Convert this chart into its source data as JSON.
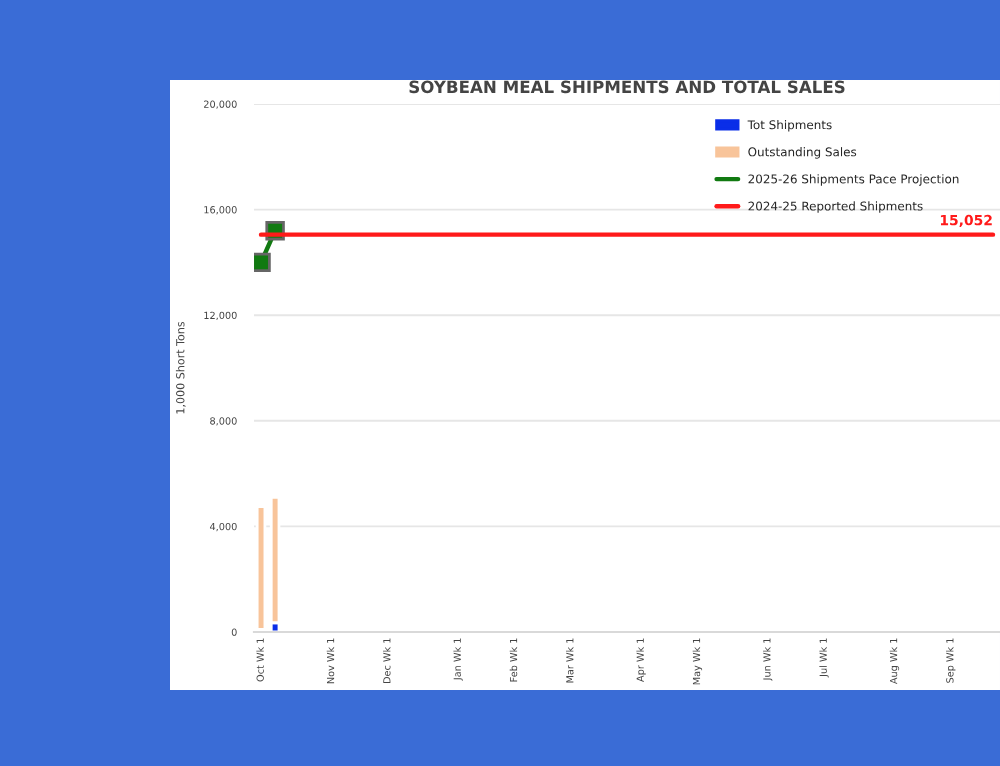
{
  "chart_data": {
    "type": "bar",
    "title": "SOYBEAN MEAL SHIPMENTS AND TOTAL SALES",
    "ylabel": "1,000 Short Tons",
    "categories": [
      "Oct Wk 1",
      null,
      null,
      null,
      null,
      "Nov Wk 1",
      null,
      null,
      null,
      "Dec Wk 1",
      null,
      null,
      null,
      null,
      "Jan Wk 1",
      null,
      null,
      null,
      "Feb Wk 1",
      null,
      null,
      null,
      "Mar Wk 1",
      null,
      null,
      null,
      null,
      "Apr Wk 1",
      null,
      null,
      null,
      "May Wk 1",
      null,
      null,
      null,
      null,
      "Jun Wk 1",
      null,
      null,
      null,
      "Jul Wk 1",
      null,
      null,
      null,
      null,
      "Aug Wk 1",
      null,
      null,
      null,
      "Sep Wk 1",
      null,
      null,
      null
    ],
    "stacked": true,
    "series": [
      {
        "name": "Tot Shipments",
        "color": "#0a2ee8",
        "values": [
          100,
          350,
          null,
          null,
          null,
          null,
          null,
          null,
          null,
          null,
          null,
          null,
          null,
          null,
          null,
          null,
          null,
          null,
          null,
          null,
          null,
          null,
          null,
          null,
          null,
          null,
          null,
          null,
          null,
          null,
          null,
          null,
          null,
          null,
          null,
          null,
          null,
          null,
          null,
          null,
          null,
          null,
          null,
          null,
          null,
          null,
          null,
          null,
          null,
          null,
          null,
          null,
          null
        ]
      },
      {
        "name": "Outstanding Sales",
        "color": "#f8c49a",
        "values": [
          4650,
          4750,
          null,
          null,
          null,
          null,
          null,
          null,
          null,
          null,
          null,
          null,
          null,
          null,
          null,
          null,
          null,
          null,
          null,
          null,
          null,
          null,
          null,
          null,
          null,
          null,
          null,
          null,
          null,
          null,
          null,
          null,
          null,
          null,
          null,
          null,
          null,
          null,
          null,
          null,
          null,
          null,
          null,
          null,
          null,
          null,
          null,
          null,
          null,
          null,
          null,
          null,
          null
        ]
      },
      {
        "name": "2025-26 Shipments Pace Projection",
        "type": "line",
        "color": "#117a11",
        "marker": "square",
        "values": [
          14000,
          15200,
          null,
          null,
          null,
          null,
          null,
          null,
          null,
          null,
          null,
          null,
          null,
          null,
          null,
          null,
          null,
          null,
          null,
          null,
          null,
          null,
          null,
          null,
          null,
          null,
          null,
          null,
          null,
          null,
          null,
          null,
          null,
          null,
          null,
          null,
          null,
          null,
          null,
          null,
          null,
          null,
          null,
          null,
          null,
          null,
          null,
          null,
          null,
          null,
          null,
          null,
          null
        ]
      },
      {
        "name": "2024-25 Reported Shipments",
        "type": "line",
        "color": "#ff1a1a",
        "values": [
          15052,
          15052,
          15052,
          15052,
          15052,
          15052,
          15052,
          15052,
          15052,
          15052,
          15052,
          15052,
          15052,
          15052,
          15052,
          15052,
          15052,
          15052,
          15052,
          15052,
          15052,
          15052,
          15052,
          15052,
          15052,
          15052,
          15052,
          15052,
          15052,
          15052,
          15052,
          15052,
          15052,
          15052,
          15052,
          15052,
          15052,
          15052,
          15052,
          15052,
          15052,
          15052,
          15052,
          15052,
          15052,
          15052,
          15052,
          15052,
          15052,
          15052,
          15052,
          15052,
          15052
        ],
        "value_labels": [
          null,
          null,
          null,
          null,
          null,
          null,
          null,
          null,
          null,
          null,
          null,
          null,
          null,
          null,
          null,
          null,
          null,
          null,
          null,
          null,
          null,
          null,
          null,
          null,
          null,
          null,
          null,
          null,
          null,
          null,
          null,
          null,
          null,
          null,
          null,
          null,
          null,
          null,
          null,
          null,
          null,
          null,
          null,
          null,
          null,
          null,
          null,
          null,
          null,
          null,
          null,
          null,
          "15,052"
        ]
      }
    ],
    "ylim": [
      0,
      20000
    ],
    "yticks": [
      {
        "value": 0,
        "label": "0"
      },
      {
        "value": 4000,
        "label": "4,000"
      },
      {
        "value": 8000,
        "label": "8,000"
      },
      {
        "value": 12000,
        "label": "12,000"
      },
      {
        "value": 16000,
        "label": "16,000"
      },
      {
        "value": 20000,
        "label": "20,000"
      }
    ],
    "grid": "y",
    "legend": "top right"
  }
}
